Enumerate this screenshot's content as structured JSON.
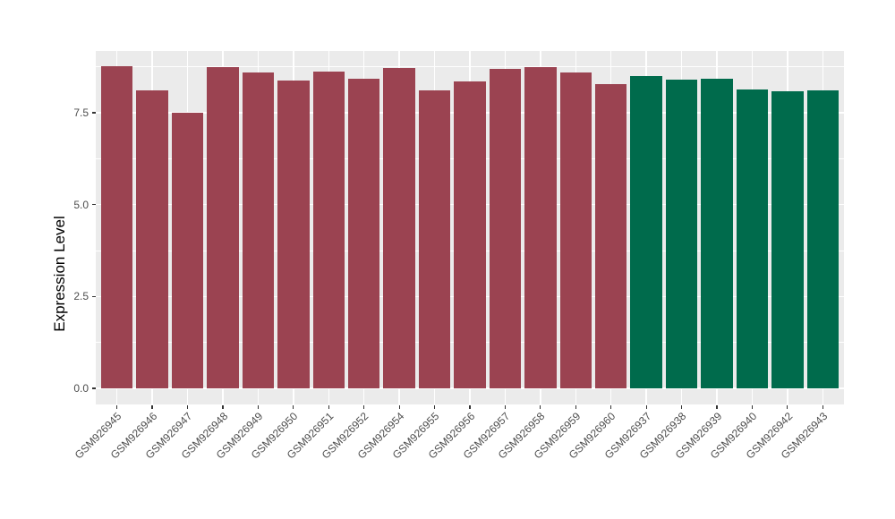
{
  "chart_data": {
    "type": "bar",
    "title": "",
    "xlabel": "",
    "ylabel": "Expression Level",
    "categories": [
      "GSM926945",
      "GSM926946",
      "GSM926947",
      "GSM926948",
      "GSM926949",
      "GSM926950",
      "GSM926951",
      "GSM926952",
      "GSM926954",
      "GSM926955",
      "GSM926956",
      "GSM926957",
      "GSM926958",
      "GSM926959",
      "GSM926960",
      "GSM926937",
      "GSM926938",
      "GSM926939",
      "GSM926940",
      "GSM926942",
      "GSM926943"
    ],
    "values": [
      8.76,
      8.1,
      7.5,
      8.75,
      8.59,
      8.37,
      8.61,
      8.42,
      8.72,
      8.12,
      8.35,
      8.69,
      8.73,
      8.6,
      8.27,
      8.5,
      8.4,
      8.42,
      8.14,
      8.09,
      8.12
    ],
    "bar_groups": [
      "maroon",
      "maroon",
      "maroon",
      "maroon",
      "maroon",
      "maroon",
      "maroon",
      "maroon",
      "maroon",
      "maroon",
      "maroon",
      "maroon",
      "maroon",
      "maroon",
      "maroon",
      "green",
      "green",
      "green",
      "green",
      "green",
      "green"
    ],
    "group_colors": {
      "maroon": "#9B4351",
      "green": "#006B4C"
    },
    "yticks": [
      0,
      2.5,
      5,
      7.5
    ],
    "ytick_labels": [
      "0.0",
      "2.5",
      "5.0",
      "7.5"
    ],
    "minor_yticks": [
      1.25,
      3.75,
      6.25,
      8.75
    ],
    "ylim": [
      -0.44,
      9.17
    ],
    "bar_width_fraction": 0.9,
    "grid": "on",
    "legend_position": "none",
    "panel_background": "#EBEBEB",
    "gridline_color": "#FFFFFF",
    "axis_text_color": "#4D4D4D",
    "tick_color": "#333333"
  }
}
